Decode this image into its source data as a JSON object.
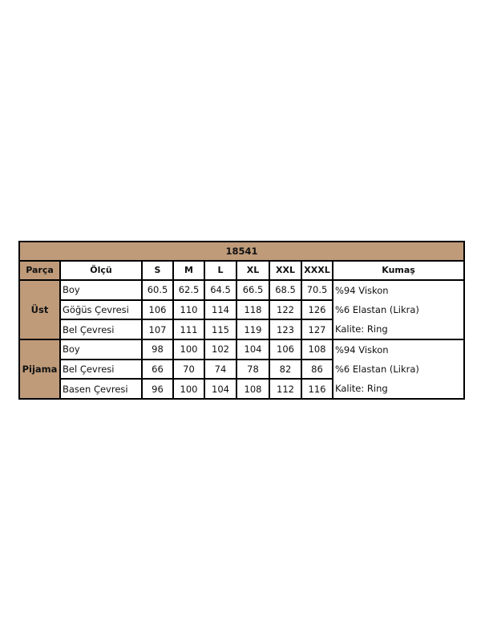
{
  "title": "18541",
  "colors": {
    "header_bg": "#bf9b7a",
    "border": "#000000"
  },
  "headers": [
    "Parça",
    "Ölçü",
    "S",
    "M",
    "L",
    "XL",
    "XXL",
    "XXXL",
    "Kumaş"
  ],
  "groups": [
    {
      "part": "Üst",
      "rows": [
        {
          "label": "Boy",
          "values": [
            "60.5",
            "62.5",
            "64.5",
            "66.5",
            "68.5",
            "70.5"
          ]
        },
        {
          "label": "Göğüs Çevresi",
          "values": [
            "106",
            "110",
            "114",
            "118",
            "122",
            "126"
          ]
        },
        {
          "label": "Bel Çevresi",
          "values": [
            "107",
            "111",
            "115",
            "119",
            "123",
            "127"
          ]
        }
      ],
      "fabric": [
        "%94 Viskon",
        "%6 Elastan (Likra)",
        "Kalite: Ring"
      ]
    },
    {
      "part": "Pijama",
      "rows": [
        {
          "label": "Boy",
          "values": [
            "98",
            "100",
            "102",
            "104",
            "106",
            "108"
          ]
        },
        {
          "label": "Bel Çevresi",
          "values": [
            "66",
            "70",
            "74",
            "78",
            "82",
            "86"
          ]
        },
        {
          "label": "Basen Çevresi",
          "values": [
            "96",
            "100",
            "104",
            "108",
            "112",
            "116"
          ]
        }
      ],
      "fabric": [
        "%94 Viskon",
        "%6 Elastan (Likra)",
        "Kalite: Ring"
      ]
    }
  ]
}
